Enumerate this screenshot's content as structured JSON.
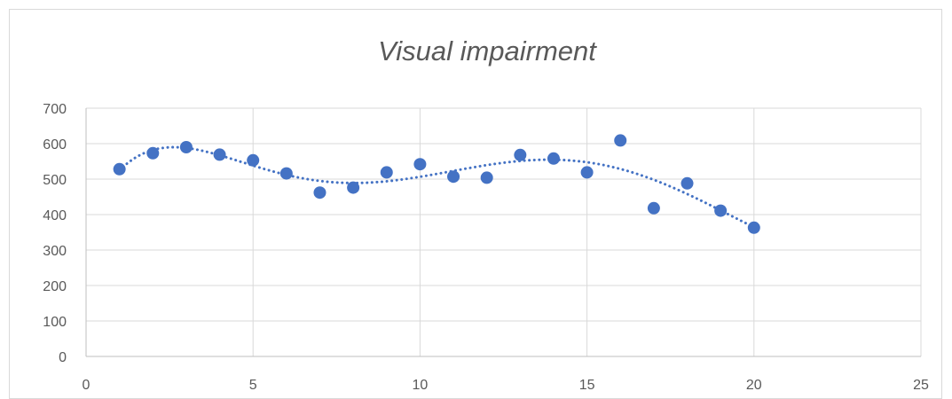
{
  "chart_data": {
    "type": "scatter",
    "title": "Visual impairment",
    "xlabel": "",
    "ylabel": "",
    "xlim": [
      0,
      25
    ],
    "ylim": [
      0,
      700
    ],
    "x_ticks": [
      0,
      5,
      10,
      15,
      20,
      25
    ],
    "y_ticks": [
      0,
      100,
      200,
      300,
      400,
      500,
      600,
      700
    ],
    "grid": true,
    "legend": "none",
    "trendline": {
      "type": "polynomial",
      "style": "dotted",
      "color": "#4472c4"
    },
    "marker_color": "#4472c4",
    "series": [
      {
        "x": [
          1,
          2,
          3,
          4,
          5,
          6,
          7,
          8,
          9,
          10,
          11,
          12,
          13,
          14,
          15,
          16,
          17,
          18,
          19,
          20
        ],
        "y": [
          528,
          573,
          590,
          569,
          553,
          516,
          462,
          476,
          519,
          542,
          507,
          504,
          568,
          558,
          519,
          609,
          418,
          488,
          411,
          363
        ]
      }
    ]
  }
}
